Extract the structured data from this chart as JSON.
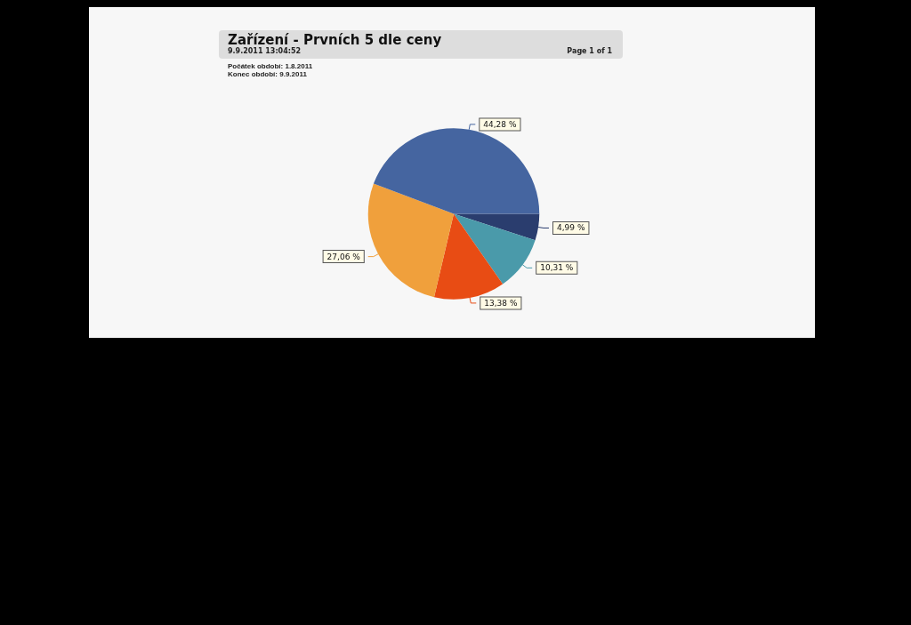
{
  "chart_data": {
    "type": "pie",
    "title": "Zařízení - Prvních 5 dle ceny",
    "subtitle": "9.9.2011 13:04:52",
    "annotations": [
      "Page 1 of 1",
      "Počátek období: 1.8.2011",
      "Konec období: 9.9.2011"
    ],
    "categories": [
      null,
      null,
      null,
      null,
      null
    ],
    "values": [
      4.99,
      10.31,
      13.38,
      27.06,
      44.28
    ],
    "value_labels": [
      "4,99 %",
      "10,31 %",
      "13,38 %",
      "27,06 %",
      "44,28 %"
    ],
    "colors": [
      "#2a3d6e",
      "#4a9aaa",
      "#e84c14",
      "#f0a03c",
      "#4565a0"
    ]
  }
}
